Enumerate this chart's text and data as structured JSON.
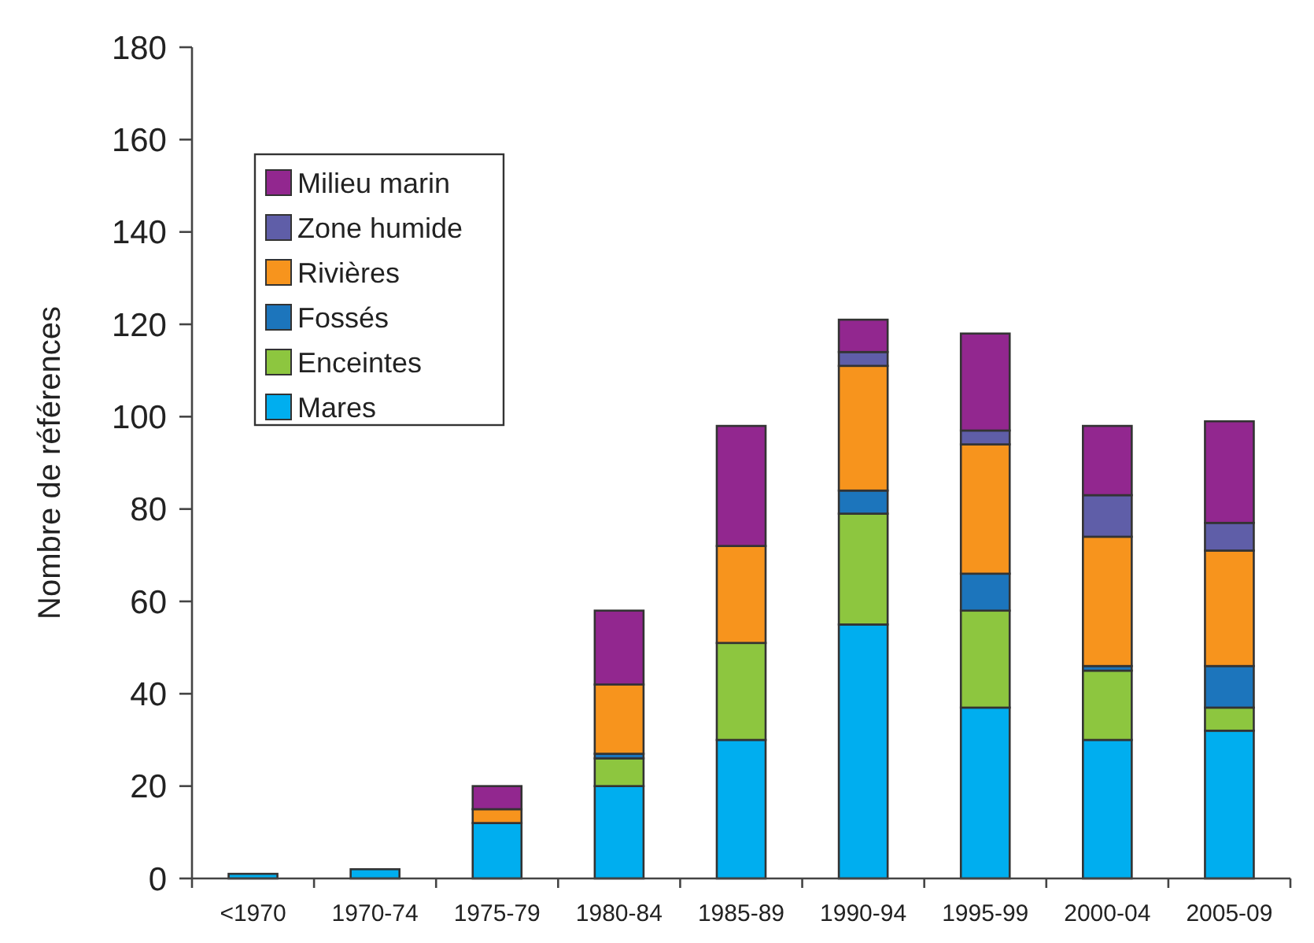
{
  "chart_data": {
    "type": "bar",
    "stacked": true,
    "ylabel": "Nombre de références",
    "categories": [
      "<1970",
      "1970-74",
      "1975-79",
      "1980-84",
      "1985-89",
      "1990-94",
      "1995-99",
      "2000-04",
      "2005-09"
    ],
    "series": [
      {
        "name": "Mares",
        "color": "#00aeef",
        "values": [
          1,
          2,
          12,
          20,
          30,
          55,
          37,
          30,
          32
        ]
      },
      {
        "name": "Enceintes",
        "color": "#8dc63f",
        "values": [
          0,
          0,
          0,
          6,
          21,
          24,
          21,
          15,
          5
        ]
      },
      {
        "name": "Fossés",
        "color": "#1c75bc",
        "values": [
          0,
          0,
          0,
          1,
          0,
          5,
          8,
          1,
          9
        ]
      },
      {
        "name": "Rivières",
        "color": "#f7941d",
        "values": [
          0,
          0,
          3,
          15,
          21,
          27,
          28,
          28,
          25
        ]
      },
      {
        "name": "Zone humide",
        "color": "#5f5ea8",
        "values": [
          0,
          0,
          0,
          0,
          0,
          3,
          3,
          9,
          6
        ]
      },
      {
        "name": "Milieu marin",
        "color": "#92278f",
        "values": [
          0,
          0,
          5,
          16,
          26,
          7,
          21,
          15,
          22
        ]
      }
    ],
    "ylim": [
      0,
      180
    ],
    "yticks": [
      0,
      20,
      40,
      60,
      80,
      100,
      120,
      140,
      160,
      180
    ],
    "legend": "top left"
  }
}
